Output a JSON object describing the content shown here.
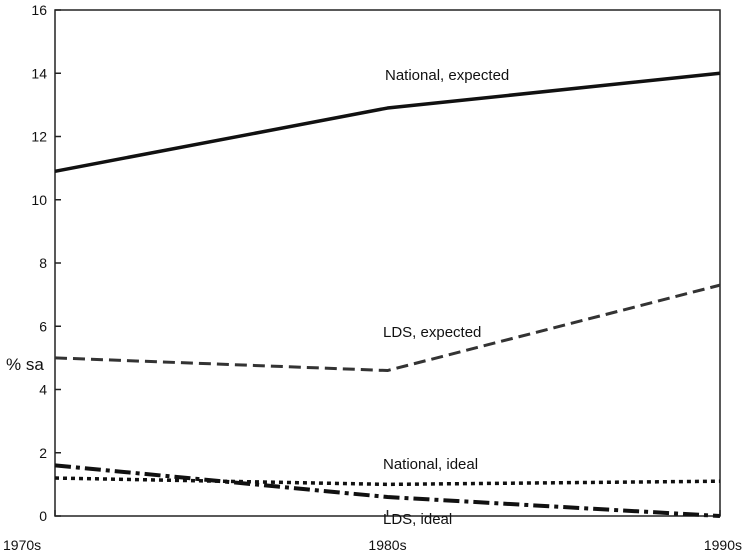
{
  "chart_data": {
    "type": "line",
    "title": "",
    "xlabel": "",
    "ylabel": "% sa",
    "categories": [
      "1970s",
      "1980s",
      "1990s"
    ],
    "ylim": [
      0,
      16
    ],
    "yticks": [
      "0",
      "2",
      "4",
      "6",
      "8",
      "10",
      "12",
      "14",
      "16"
    ],
    "grid": false,
    "legend": "inline labels",
    "series": [
      {
        "name": "National, expected",
        "values": [
          10.9,
          12.9,
          14.0
        ],
        "style": "solid",
        "color": "#111111"
      },
      {
        "name": "LDS, expected",
        "values": [
          5.0,
          4.6,
          7.3
        ],
        "style": "dashed",
        "color": "#333333"
      },
      {
        "name": "National, ideal",
        "values": [
          1.2,
          1.0,
          1.1
        ],
        "style": "dotted",
        "color": "#111111"
      },
      {
        "name": "LDS, ideal",
        "values": [
          1.6,
          0.6,
          0.0
        ],
        "style": "dashdot",
        "color": "#111111"
      }
    ]
  }
}
